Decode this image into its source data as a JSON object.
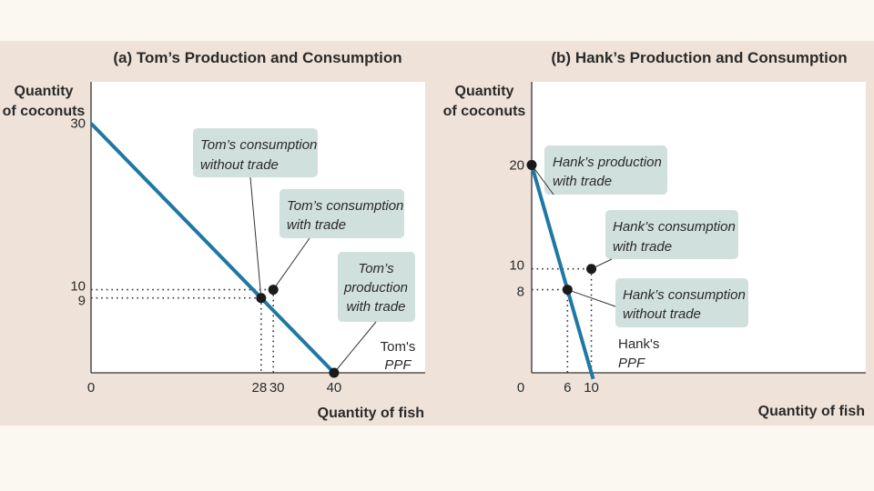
{
  "colors": {
    "page_background": "#fbf8f2",
    "figure_background": "#efe3d9",
    "plot_background": "#ffffff",
    "ppf_line": "#1f78a4",
    "callout_fill": "#cfe0dd",
    "text": "#2a2a2a"
  },
  "chart_data": [
    {
      "type": "line",
      "title": "(a) Tom’s Production and Consumption",
      "ylabel_line1": "Quantity",
      "ylabel_line2": "of coconuts",
      "xlabel": "Quantity of fish",
      "xlim": [
        0,
        55
      ],
      "ylim": [
        0,
        35
      ],
      "ppf": {
        "x": [
          0,
          40
        ],
        "y": [
          30,
          0
        ]
      },
      "ppf_label_line1": "Tom's",
      "ppf_label_line2": "PPF",
      "x_ticks": [
        {
          "value": 0,
          "label": "0"
        },
        {
          "value": 28,
          "label": "28"
        },
        {
          "value": 30,
          "label": "30"
        },
        {
          "value": 40,
          "label": "40"
        }
      ],
      "y_ticks": [
        {
          "value": 30,
          "label": "30"
        },
        {
          "value": 10,
          "label": "10"
        },
        {
          "value": 9,
          "label": "9"
        }
      ],
      "points": [
        {
          "name": "consumption-without-trade",
          "x": 28,
          "y": 9
        },
        {
          "name": "consumption-with-trade",
          "x": 30,
          "y": 10
        },
        {
          "name": "production-with-trade",
          "x": 40,
          "y": 0
        }
      ],
      "annotations": [
        {
          "lines": [
            "Tom’s consumption",
            "without trade"
          ]
        },
        {
          "lines": [
            "Tom’s consumption",
            "with trade"
          ]
        },
        {
          "lines": [
            "Tom’s",
            "production",
            "with trade"
          ]
        }
      ]
    },
    {
      "type": "line",
      "title": "(b) Hank’s Production and Consumption",
      "ylabel_line1": "Quantity",
      "ylabel_line2": "of coconuts",
      "xlabel": "Quantity of fish",
      "xlim": [
        0,
        56
      ],
      "ylim": [
        0,
        28
      ],
      "ppf": {
        "x": [
          0,
          10
        ],
        "y": [
          20,
          0
        ]
      },
      "ppf_label_line1": "Hank's",
      "ppf_label_line2": "PPF",
      "x_ticks": [
        {
          "value": 0,
          "label": "0"
        },
        {
          "value": 6,
          "label": "6"
        },
        {
          "value": 10,
          "label": "10"
        }
      ],
      "y_ticks": [
        {
          "value": 20,
          "label": "20"
        },
        {
          "value": 10,
          "label": "10"
        },
        {
          "value": 8,
          "label": "8"
        }
      ],
      "points": [
        {
          "name": "production-with-trade",
          "x": 0,
          "y": 20
        },
        {
          "name": "consumption-with-trade",
          "x": 10,
          "y": 10
        },
        {
          "name": "consumption-without-trade",
          "x": 6,
          "y": 8
        }
      ],
      "annotations": [
        {
          "lines": [
            "Hank’s production",
            "with trade"
          ]
        },
        {
          "lines": [
            "Hank’s consumption",
            "with trade"
          ]
        },
        {
          "lines": [
            "Hank’s consumption",
            "without trade"
          ]
        }
      ]
    }
  ]
}
